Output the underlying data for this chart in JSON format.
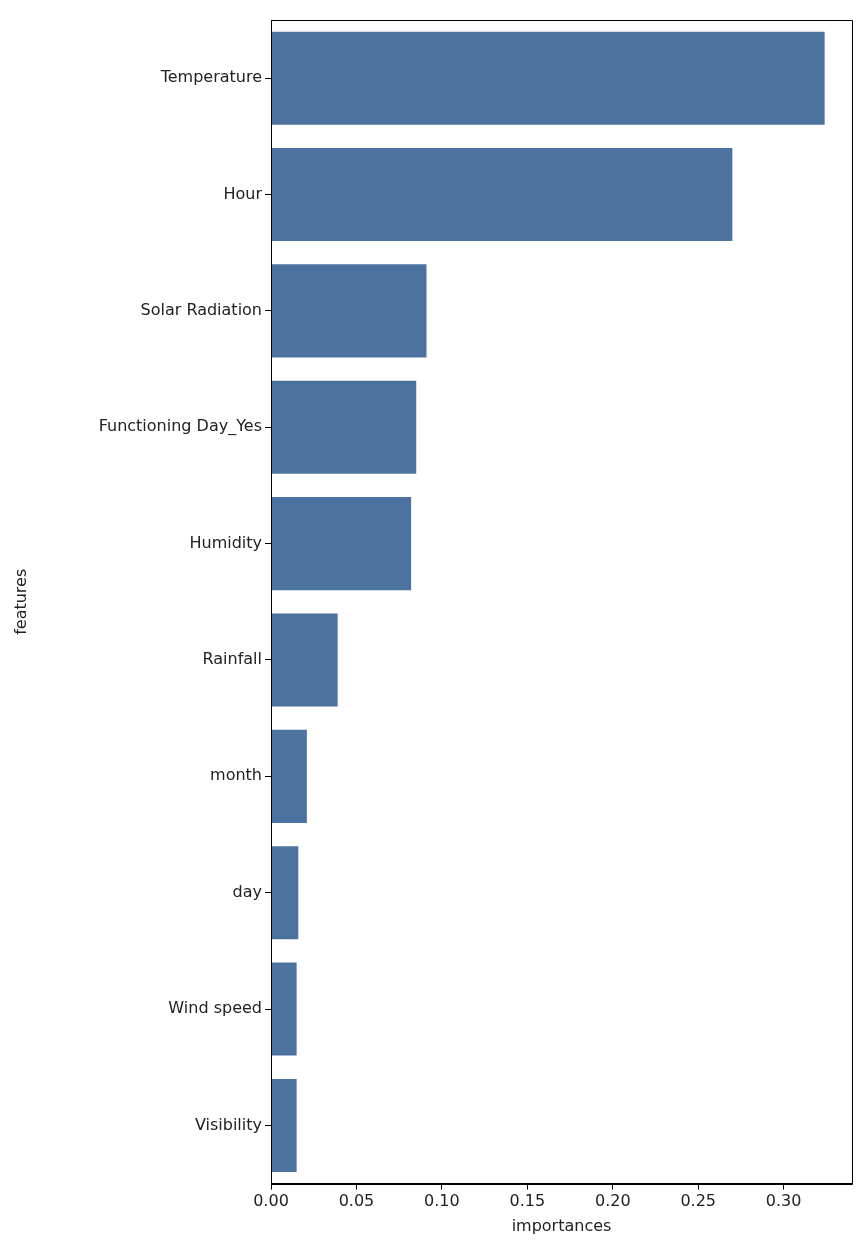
{
  "chart_data": {
    "type": "bar",
    "orientation": "horizontal",
    "xlabel": "importances",
    "ylabel": "features",
    "categories": [
      "Temperature",
      "Hour",
      "Solar Radiation",
      "Functioning Day_Yes",
      "Humidity",
      "Rainfall",
      "month",
      "day",
      "Wind speed",
      "Visibility"
    ],
    "values": [
      0.324,
      0.27,
      0.091,
      0.085,
      0.082,
      0.039,
      0.021,
      0.016,
      0.015,
      0.015
    ],
    "color": "#4c72a0",
    "xlim": [
      0,
      0.34
    ],
    "xticks": [
      {
        "value": 0,
        "label": "0.00"
      },
      {
        "value": 0.05,
        "label": "0.05"
      },
      {
        "value": 0.1,
        "label": "0.10"
      },
      {
        "value": 0.15,
        "label": "0.15"
      },
      {
        "value": 0.2,
        "label": "0.20"
      },
      {
        "value": 0.25,
        "label": "0.25"
      },
      {
        "value": 0.3,
        "label": "0.30"
      }
    ],
    "grid": false,
    "legend": false
  }
}
